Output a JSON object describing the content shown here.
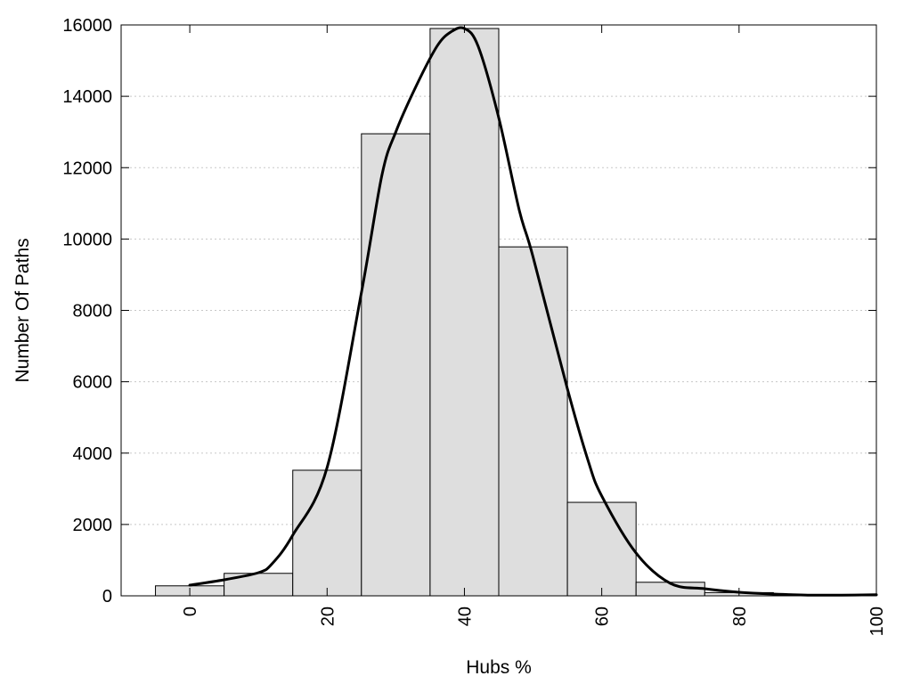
{
  "chart_data": {
    "type": "bar",
    "title": "",
    "xlabel": "Hubs %",
    "ylabel": "Number Of Paths",
    "xlim": [
      -10,
      100
    ],
    "ylim": [
      0,
      16000
    ],
    "grid": true,
    "colors": {
      "bar_fill": "#dedede",
      "bar_stroke": "#000000",
      "curve": "#000000",
      "grid": "#c8c8c8"
    },
    "x_ticks": [
      0,
      20,
      40,
      60,
      80,
      100
    ],
    "y_ticks": [
      0,
      2000,
      4000,
      6000,
      8000,
      10000,
      12000,
      14000,
      16000
    ],
    "bins": [
      {
        "x": 0,
        "value": 280
      },
      {
        "x": 10,
        "value": 630
      },
      {
        "x": 20,
        "value": 3520
      },
      {
        "x": 30,
        "value": 12950
      },
      {
        "x": 40,
        "value": 15900
      },
      {
        "x": 50,
        "value": 9780
      },
      {
        "x": 60,
        "value": 2620
      },
      {
        "x": 70,
        "value": 380
      },
      {
        "x": 80,
        "value": 90
      },
      {
        "x": 90,
        "value": 15
      },
      {
        "x": 100,
        "value": 10
      }
    ],
    "bin_width": 10,
    "curve": {
      "type": "line",
      "x": [
        0,
        5,
        10,
        12,
        15,
        20,
        25,
        28,
        30,
        33,
        36,
        38,
        40,
        42,
        45,
        48,
        50,
        55,
        58,
        60,
        65,
        70,
        75,
        80,
        85,
        90,
        95,
        100
      ],
      "y": [
        300,
        450,
        650,
        900,
        1700,
        3600,
        8500,
        11800,
        13000,
        14300,
        15400,
        15800,
        15900,
        15400,
        13400,
        10800,
        9500,
        5800,
        3800,
        2800,
        1200,
        350,
        200,
        100,
        50,
        20,
        20,
        30
      ]
    }
  }
}
